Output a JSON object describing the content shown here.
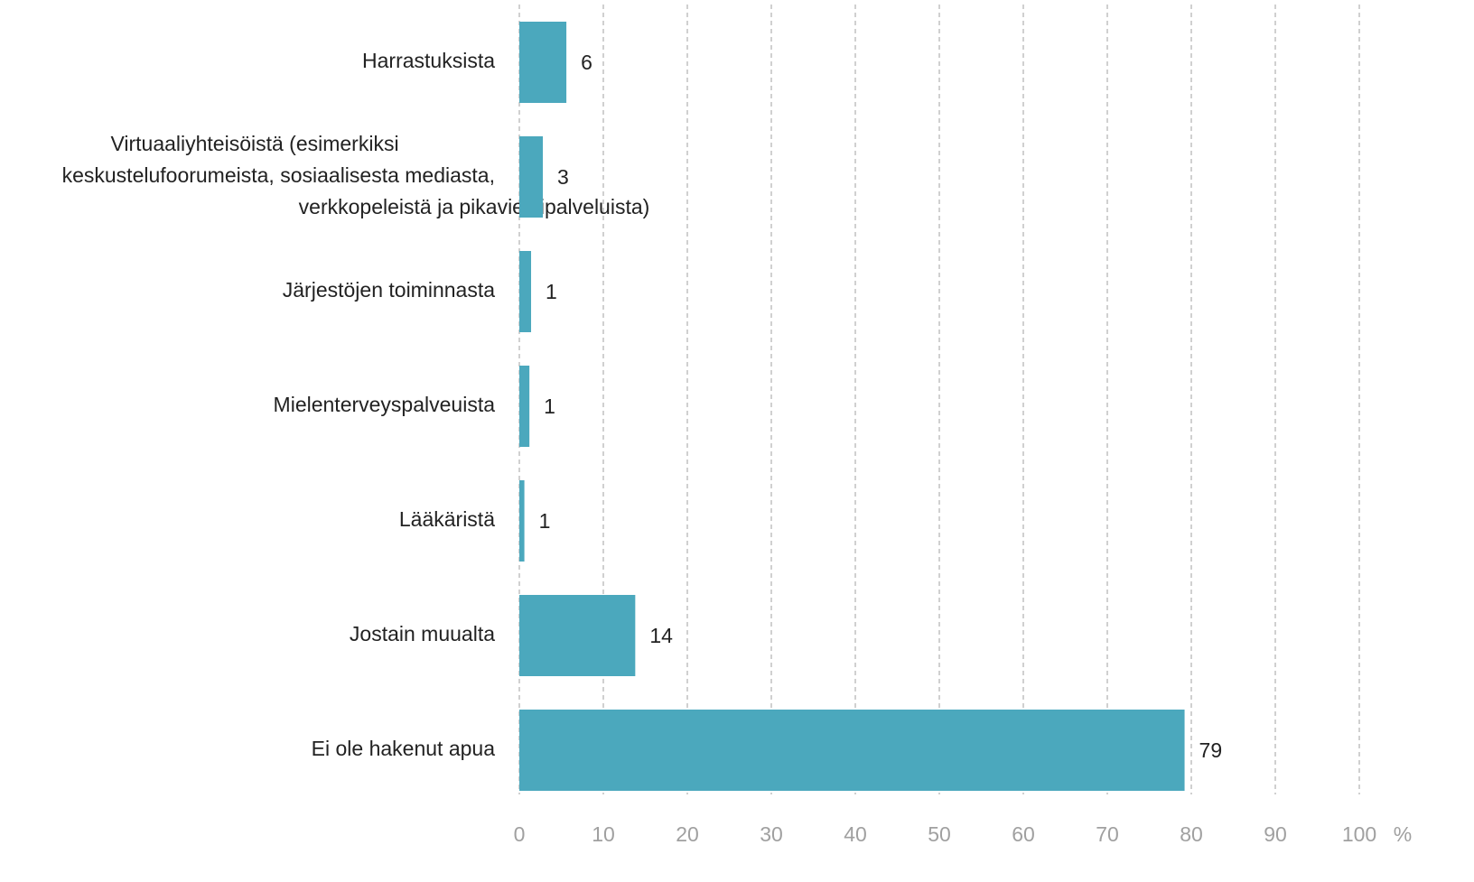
{
  "chart_data": {
    "type": "bar",
    "orientation": "horizontal",
    "categories": [
      "Harrastuksista",
      "Virtuaaliyhteisöistä (esimerkiksi\nkeskustelufoorumeista, sosiaalisesta mediasta,\nverkkopeleistä ja pikaviestipalveluista)",
      "Järjestöjen toiminnasta",
      "Mielenterveyspalveuista",
      "Lääkäristä",
      "Jostain muualta",
      "Ei ole hakenut apua"
    ],
    "values": [
      5.6,
      2.8,
      1.4,
      1.2,
      0.6,
      13.8,
      79.2
    ],
    "value_labels": [
      "6",
      "3",
      "1",
      "1",
      "1",
      "14",
      "79"
    ],
    "color": "#4ba8bd",
    "xlabel": "%",
    "xlim": [
      0,
      100
    ],
    "xticks": [
      0,
      10,
      20,
      30,
      40,
      50,
      60,
      70,
      80,
      90,
      100
    ],
    "grid": true
  }
}
